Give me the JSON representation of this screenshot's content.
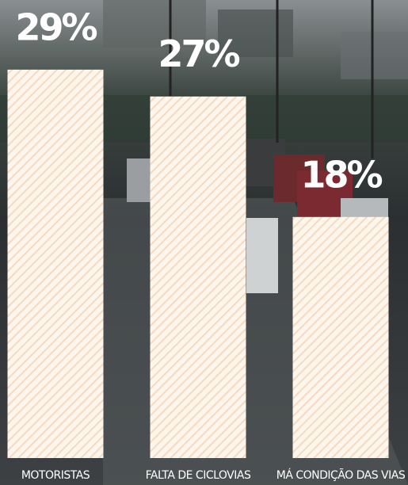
{
  "chart_data": {
    "type": "bar",
    "categories": [
      "MOTORISTAS",
      "FALTA DE CICLOVIAS",
      "MÁ CONDIÇÃO DAS VIAS"
    ],
    "values": [
      29,
      27,
      18
    ],
    "value_labels": [
      "29%",
      "27%",
      "18%"
    ],
    "color": "#fdf6ec"
  }
}
